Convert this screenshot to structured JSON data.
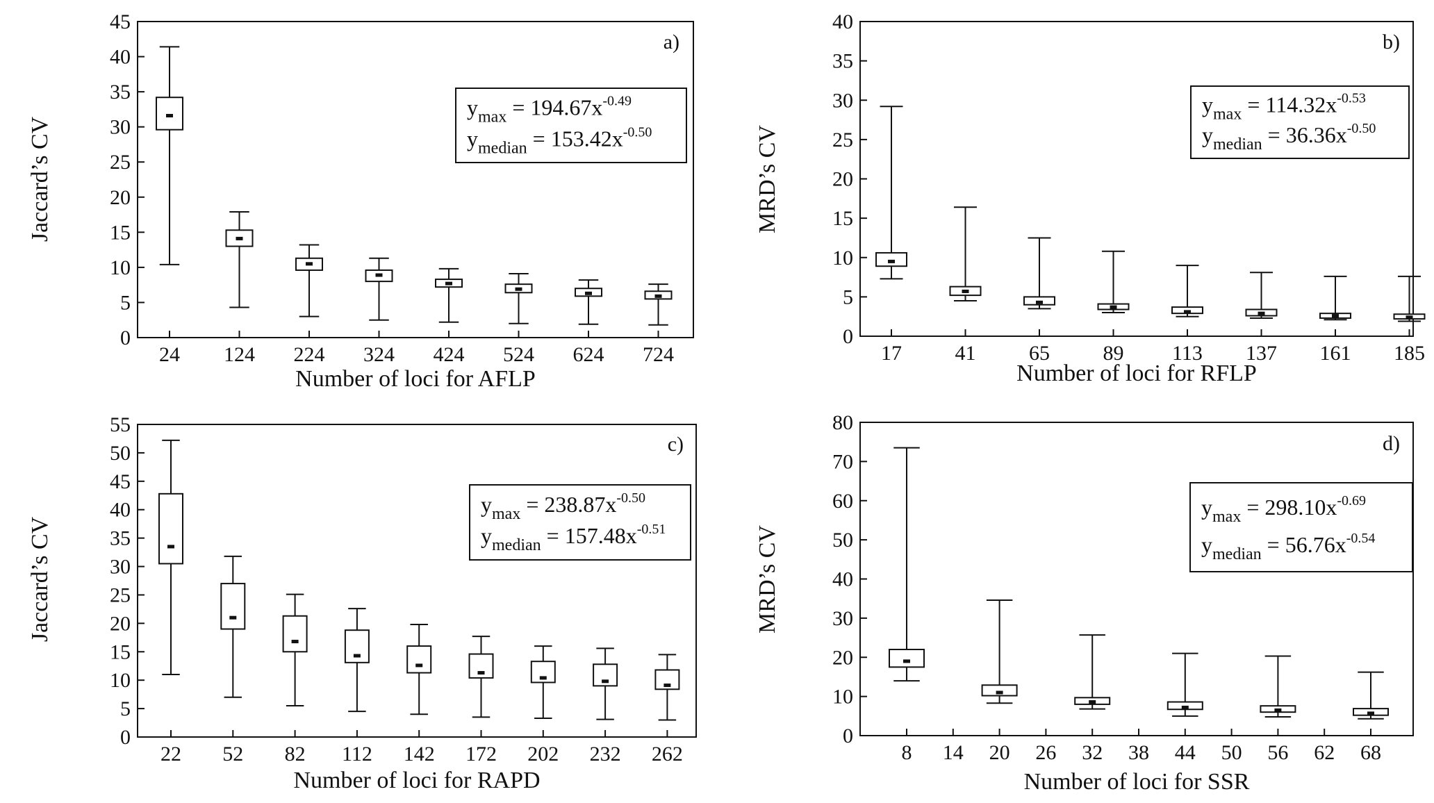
{
  "chart_data": [
    {
      "type": "box",
      "panel_label": "a)",
      "xlabel": "Number of loci for AFLP",
      "ylabel": "Jaccard’s CV",
      "ylim": [
        0,
        45
      ],
      "yticks": [
        0,
        5,
        10,
        15,
        20,
        25,
        30,
        35,
        40,
        45
      ],
      "categories": [
        "24",
        "124",
        "224",
        "324",
        "424",
        "524",
        "624",
        "724"
      ],
      "boxes": [
        {
          "min": 10.4,
          "q1": 29.6,
          "median": 31.6,
          "q3": 34.2,
          "max": 41.4
        },
        {
          "min": 4.3,
          "q1": 13.0,
          "median": 14.1,
          "q3": 15.3,
          "max": 17.9
        },
        {
          "min": 3.0,
          "q1": 9.6,
          "median": 10.5,
          "q3": 11.3,
          "max": 13.2
        },
        {
          "min": 2.5,
          "q1": 8.0,
          "median": 8.9,
          "q3": 9.6,
          "max": 11.3
        },
        {
          "min": 2.2,
          "q1": 7.2,
          "median": 7.7,
          "q3": 8.3,
          "max": 9.8
        },
        {
          "min": 2.0,
          "q1": 6.4,
          "median": 6.9,
          "q3": 7.6,
          "max": 9.1
        },
        {
          "min": 1.9,
          "q1": 5.9,
          "median": 6.3,
          "q3": 7.0,
          "max": 8.2
        },
        {
          "min": 1.8,
          "q1": 5.5,
          "median": 5.9,
          "q3": 6.6,
          "max": 7.6
        }
      ],
      "equations": [
        {
          "lhs": "y",
          "sub": "max",
          "rhs": " = 194.67x",
          "exp": "-0.49"
        },
        {
          "lhs": "y",
          "sub": "median",
          "rhs": " = 153.42x",
          "exp": "-0.50"
        }
      ]
    },
    {
      "type": "box",
      "panel_label": "b)",
      "xlabel": "Number of loci for RFLP",
      "ylabel": "MRD’s CV",
      "ylim": [
        0,
        40
      ],
      "yticks": [
        0,
        5,
        10,
        15,
        20,
        25,
        30,
        35,
        40
      ],
      "categories": [
        "17",
        "41",
        "65",
        "89",
        "113",
        "137",
        "161",
        "185"
      ],
      "boxes": [
        {
          "min": 7.3,
          "q1": 8.9,
          "median": 9.5,
          "q3": 10.6,
          "max": 29.2
        },
        {
          "min": 4.5,
          "q1": 5.2,
          "median": 5.7,
          "q3": 6.3,
          "max": 16.4
        },
        {
          "min": 3.5,
          "q1": 4.0,
          "median": 4.3,
          "q3": 5.0,
          "max": 12.5
        },
        {
          "min": 3.0,
          "q1": 3.4,
          "median": 3.7,
          "q3": 4.1,
          "max": 10.8
        },
        {
          "min": 2.5,
          "q1": 2.9,
          "median": 3.1,
          "q3": 3.7,
          "max": 9.0
        },
        {
          "min": 2.3,
          "q1": 2.6,
          "median": 2.9,
          "q3": 3.4,
          "max": 8.1
        },
        {
          "min": 2.1,
          "q1": 2.3,
          "median": 2.6,
          "q3": 2.9,
          "max": 7.6
        },
        {
          "min": 1.9,
          "q1": 2.2,
          "median": 2.4,
          "q3": 2.8,
          "max": 7.6
        }
      ],
      "equations": [
        {
          "lhs": "y",
          "sub": "max",
          "rhs": " = 114.32x",
          "exp": "-0.53"
        },
        {
          "lhs": "y",
          "sub": "median",
          "rhs": " = 36.36x",
          "exp": "-0.50"
        }
      ]
    },
    {
      "type": "box",
      "panel_label": "c)",
      "xlabel": "Number of loci for RAPD",
      "ylabel": "Jaccard’s CV",
      "ylim": [
        0,
        55
      ],
      "yticks": [
        0,
        5,
        10,
        15,
        20,
        25,
        30,
        35,
        40,
        45,
        50,
        55
      ],
      "categories": [
        "22",
        "52",
        "82",
        "112",
        "142",
        "172",
        "202",
        "232",
        "262"
      ],
      "boxes": [
        {
          "min": 11.0,
          "q1": 30.5,
          "median": 33.5,
          "q3": 42.8,
          "max": 52.2
        },
        {
          "min": 7.0,
          "q1": 19.0,
          "median": 21.0,
          "q3": 27.0,
          "max": 31.8
        },
        {
          "min": 5.5,
          "q1": 15.0,
          "median": 16.8,
          "q3": 21.3,
          "max": 25.1
        },
        {
          "min": 4.5,
          "q1": 13.1,
          "median": 14.3,
          "q3": 18.8,
          "max": 22.6
        },
        {
          "min": 4.0,
          "q1": 11.3,
          "median": 12.6,
          "q3": 16.0,
          "max": 19.8
        },
        {
          "min": 3.5,
          "q1": 10.4,
          "median": 11.3,
          "q3": 14.6,
          "max": 17.7
        },
        {
          "min": 3.3,
          "q1": 9.6,
          "median": 10.4,
          "q3": 13.3,
          "max": 16.0
        },
        {
          "min": 3.1,
          "q1": 9.0,
          "median": 9.8,
          "q3": 12.8,
          "max": 15.6
        },
        {
          "min": 3.0,
          "q1": 8.4,
          "median": 9.1,
          "q3": 11.8,
          "max": 14.5
        }
      ],
      "equations": [
        {
          "lhs": "y",
          "sub": "max",
          "rhs": " = 238.87x",
          "exp": "-0.50"
        },
        {
          "lhs": "y",
          "sub": "median",
          "rhs": " = 157.48x",
          "exp": "-0.51"
        }
      ]
    },
    {
      "type": "box",
      "panel_label": "d)",
      "xlabel": "Number of loci for SSR",
      "ylabel": "MRD’s CV",
      "ylim": [
        0,
        80
      ],
      "yticks": [
        0,
        10,
        20,
        30,
        40,
        50,
        60,
        70,
        80
      ],
      "xlim": [
        2,
        74
      ],
      "xticks": [
        "8",
        "14",
        "20",
        "26",
        "32",
        "38",
        "44",
        "50",
        "56",
        "62",
        "68"
      ],
      "categories": [
        "8",
        "20",
        "32",
        "44",
        "56",
        "68"
      ],
      "boxes": [
        {
          "min": 14.0,
          "q1": 17.5,
          "median": 19.0,
          "q3": 22.0,
          "max": 73.5
        },
        {
          "min": 8.3,
          "q1": 10.2,
          "median": 11.0,
          "q3": 12.9,
          "max": 34.6
        },
        {
          "min": 6.8,
          "q1": 8.0,
          "median": 8.6,
          "q3": 9.7,
          "max": 25.7
        },
        {
          "min": 5.0,
          "q1": 6.7,
          "median": 7.2,
          "q3": 8.6,
          "max": 21.0
        },
        {
          "min": 4.8,
          "q1": 6.0,
          "median": 6.5,
          "q3": 7.6,
          "max": 20.3
        },
        {
          "min": 4.3,
          "q1": 5.2,
          "median": 5.7,
          "q3": 6.9,
          "max": 16.2
        }
      ],
      "equations": [
        {
          "lhs": "y",
          "sub": "max",
          "rhs": " = 298.10x",
          "exp": "-0.69"
        },
        {
          "lhs": "y",
          "sub": "median",
          "rhs": " = 56.76x",
          "exp": "-0.54"
        }
      ]
    }
  ]
}
